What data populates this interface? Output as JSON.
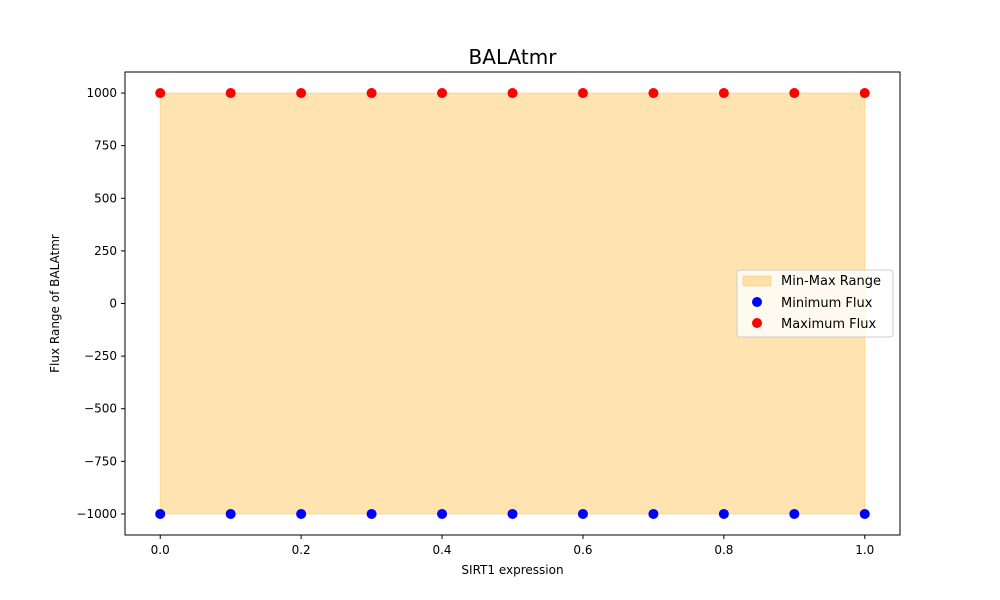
{
  "chart_data": {
    "type": "scatter",
    "title": "BALAtmr",
    "xlabel": "SIRT1 expression",
    "ylabel": "Flux Range of BALAtmr",
    "xlim": [
      -0.05,
      1.05
    ],
    "ylim": [
      -1100,
      1100
    ],
    "xticks": [
      0.0,
      0.2,
      0.4,
      0.6,
      0.8,
      1.0
    ],
    "xtick_labels": [
      "0.0",
      "0.2",
      "0.4",
      "0.6",
      "0.8",
      "1.0"
    ],
    "yticks": [
      -1000,
      -750,
      -500,
      -250,
      0,
      250,
      500,
      750,
      1000
    ],
    "ytick_labels": [
      "−1000",
      "−750",
      "−500",
      "−250",
      "0",
      "250",
      "500",
      "750",
      "1000"
    ],
    "x": [
      0.0,
      0.1,
      0.2,
      0.3,
      0.4,
      0.5,
      0.6,
      0.7,
      0.8,
      0.9,
      1.0
    ],
    "series": [
      {
        "name": "Minimum Flux",
        "kind": "scatter",
        "color": "#0000ff",
        "values": [
          -1000,
          -1000,
          -1000,
          -1000,
          -1000,
          -1000,
          -1000,
          -1000,
          -1000,
          -1000,
          -1000
        ]
      },
      {
        "name": "Maximum Flux",
        "kind": "scatter",
        "color": "#ff0000",
        "values": [
          1000,
          1000,
          1000,
          1000,
          1000,
          1000,
          1000,
          1000,
          1000,
          1000,
          1000
        ]
      }
    ],
    "fill": {
      "name": "Min-Max Range",
      "color": "#ffa500",
      "opacity": 0.3
    },
    "legend": {
      "placement": "center-right",
      "entries": [
        "Min-Max Range",
        "Minimum Flux",
        "Maximum Flux"
      ]
    },
    "grid": false
  }
}
